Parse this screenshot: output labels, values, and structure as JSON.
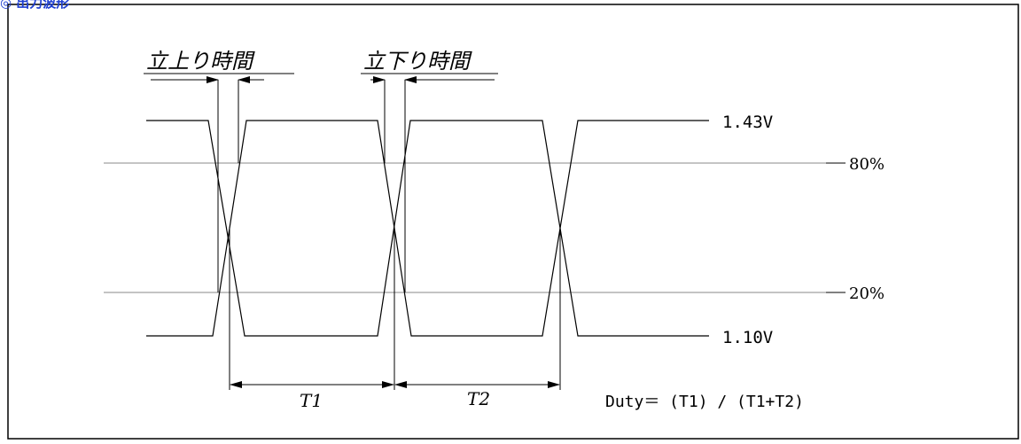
{
  "header": {
    "title": "◎ 出力波形"
  },
  "diagram": {
    "rise_time_label": "立上り時間",
    "fall_time_label": "立下り時間",
    "high_level_label": "1.43V",
    "low_level_label": "1.10V",
    "upper_threshold_label": "80%",
    "lower_threshold_label": "20%",
    "period_t1_label": "T1",
    "period_t2_label": "T2",
    "duty_formula": "Duty＝ (T1) / (T1+T2)"
  }
}
